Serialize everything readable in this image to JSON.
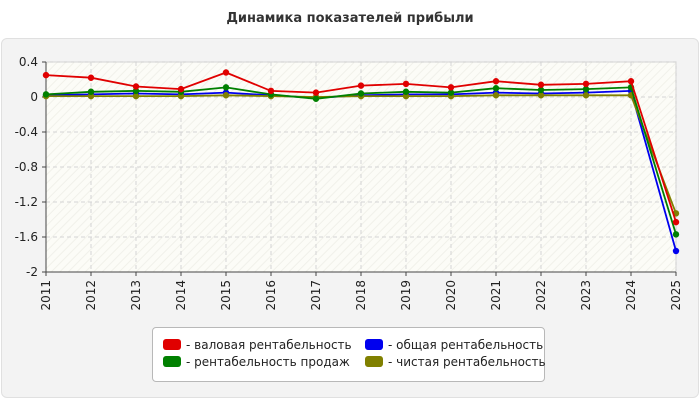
{
  "chart_data": {
    "type": "line",
    "title": "Динамика показателей прибыли",
    "x": [
      "2011",
      "2012",
      "2013",
      "2014",
      "2015",
      "2016",
      "2017",
      "2018",
      "2019",
      "2020",
      "2021",
      "2022",
      "2023",
      "2024",
      "2025"
    ],
    "ylim": [
      -2,
      0.4
    ],
    "yticks": [
      "0.4",
      "0",
      "-0.4",
      "-0.8",
      "-1.2",
      "-1.6",
      "-2"
    ],
    "grid": true,
    "legend_position": "bottom",
    "series": [
      {
        "name": "- валовая рентабельность",
        "color": "#e00000",
        "values": [
          0.25,
          0.22,
          0.12,
          0.09,
          0.28,
          0.07,
          0.05,
          0.13,
          0.15,
          0.11,
          0.18,
          0.14,
          0.15,
          0.18,
          -1.43
        ]
      },
      {
        "name": "- общая рентабельность",
        "color": "#0000ee",
        "values": [
          0.02,
          0.03,
          0.04,
          0.03,
          0.05,
          0.02,
          -0.01,
          0.02,
          0.03,
          0.03,
          0.05,
          0.04,
          0.05,
          0.07,
          -1.76
        ]
      },
      {
        "name": "- рентабельность продаж",
        "color": "#008000",
        "values": [
          0.03,
          0.06,
          0.07,
          0.06,
          0.11,
          0.03,
          -0.02,
          0.04,
          0.06,
          0.05,
          0.1,
          0.08,
          0.09,
          0.11,
          -1.57
        ]
      },
      {
        "name": "- чистая рентабельность",
        "color": "#808000",
        "values": [
          0.01,
          0.01,
          0.01,
          0.01,
          0.02,
          0.01,
          0.0,
          0.01,
          0.01,
          0.01,
          0.02,
          0.02,
          0.02,
          0.02,
          -1.33
        ]
      }
    ]
  }
}
